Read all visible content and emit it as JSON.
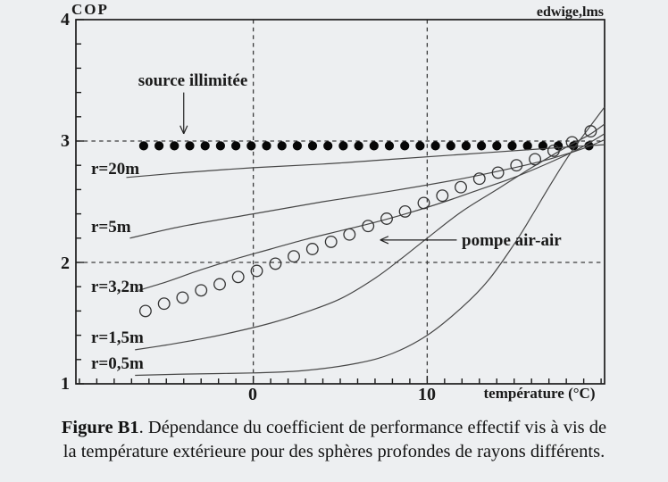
{
  "figure": {
    "watermark": "edwige,lms",
    "caption": {
      "bold": "Figure B1",
      "line1_rest": ". Dépendance du coefficient de performance effectif vis à vis de",
      "line2": "la température extérieure pour des sphères profondes de rayons différents."
    }
  },
  "colors": {
    "paper": "#edeff1",
    "ink": "#1c1c1c",
    "curve": "#474747",
    "dashed": "#3c3c3c",
    "dot_fill": "#070707"
  },
  "chart_data": {
    "type": "line",
    "title": "",
    "xlabel": "température (°C)",
    "ylabel": "COP",
    "xlim": [
      -10.2,
      20.2
    ],
    "ylim": [
      1,
      4
    ],
    "x_tick_labels": [
      "0",
      "10"
    ],
    "x_ticks_labeled_values": [
      0,
      10
    ],
    "x_minor_step": 1,
    "y_tick_labels": [
      "4",
      "3",
      "2",
      "1"
    ],
    "y_ticks_labeled_values": [
      1,
      2,
      3,
      4
    ],
    "y_minor_step": 0.2,
    "grid": {
      "h_dashed_cop": [
        2,
        3
      ],
      "v_dashed_temp": [
        0,
        10
      ]
    },
    "legend_position": "none",
    "series": [
      {
        "id": "source-illimitee",
        "style": "filled-dots",
        "cop": 2.96,
        "t_start": -6.3,
        "t_end": 19.3,
        "count": 30
      },
      {
        "id": "r-20m",
        "label": "r=20m",
        "style": "line",
        "points": [
          [
            -7.3,
            2.7
          ],
          [
            -4,
            2.74
          ],
          [
            0,
            2.78
          ],
          [
            4,
            2.81
          ],
          [
            8,
            2.85
          ],
          [
            12,
            2.89
          ],
          [
            16,
            2.93
          ],
          [
            18,
            2.95
          ],
          [
            20.2,
            2.97
          ]
        ]
      },
      {
        "id": "r-5m",
        "label": "r=5m",
        "style": "line",
        "points": [
          [
            -7.1,
            2.2
          ],
          [
            -4,
            2.3
          ],
          [
            0,
            2.4
          ],
          [
            4,
            2.5
          ],
          [
            8,
            2.59
          ],
          [
            12,
            2.69
          ],
          [
            15,
            2.78
          ],
          [
            17,
            2.85
          ],
          [
            19,
            2.94
          ],
          [
            20.2,
            3.01
          ]
        ]
      },
      {
        "id": "r-3-2m",
        "label": "r=3,2m",
        "style": "line",
        "points": [
          [
            -6.6,
            1.77
          ],
          [
            -5,
            1.84
          ],
          [
            -3,
            1.94
          ],
          [
            -1,
            2.03
          ],
          [
            1,
            2.11
          ],
          [
            3,
            2.19
          ],
          [
            5,
            2.26
          ],
          [
            7,
            2.33
          ],
          [
            9,
            2.41
          ],
          [
            11,
            2.5
          ],
          [
            13,
            2.6
          ],
          [
            15,
            2.7
          ],
          [
            17,
            2.82
          ],
          [
            18.5,
            2.92
          ],
          [
            19.5,
            3.0
          ],
          [
            20.2,
            3.06
          ]
        ]
      },
      {
        "id": "r-1-5m",
        "label": "r=1,5m",
        "style": "line",
        "points": [
          [
            -6.8,
            1.28
          ],
          [
            -5,
            1.32
          ],
          [
            -3,
            1.37
          ],
          [
            -1,
            1.43
          ],
          [
            1,
            1.5
          ],
          [
            3,
            1.59
          ],
          [
            5,
            1.7
          ],
          [
            7,
            1.87
          ],
          [
            8.5,
            2.03
          ],
          [
            10,
            2.2
          ],
          [
            12,
            2.42
          ],
          [
            14,
            2.6
          ],
          [
            16,
            2.78
          ],
          [
            18,
            2.95
          ],
          [
            19.3,
            3.05
          ],
          [
            20.2,
            3.14
          ]
        ]
      },
      {
        "id": "r-0-5m",
        "label": "r=0,5m",
        "style": "line",
        "points": [
          [
            -6.8,
            1.07
          ],
          [
            -4,
            1.08
          ],
          [
            0,
            1.09
          ],
          [
            3,
            1.11
          ],
          [
            6,
            1.17
          ],
          [
            8,
            1.25
          ],
          [
            10,
            1.4
          ],
          [
            12,
            1.63
          ],
          [
            13.5,
            1.85
          ],
          [
            15,
            2.15
          ],
          [
            16,
            2.38
          ],
          [
            17,
            2.62
          ],
          [
            18,
            2.85
          ],
          [
            19,
            3.05
          ],
          [
            20.2,
            3.28
          ]
        ]
      },
      {
        "id": "pompe-air-air",
        "style": "open-circles",
        "points": [
          [
            -6.2,
            1.6
          ],
          [
            -5.13,
            1.66
          ],
          [
            -4.07,
            1.71
          ],
          [
            -3.0,
            1.77
          ],
          [
            -1.93,
            1.82
          ],
          [
            -0.87,
            1.88
          ],
          [
            0.2,
            1.93
          ],
          [
            1.27,
            1.99
          ],
          [
            2.33,
            2.05
          ],
          [
            3.4,
            2.11
          ],
          [
            4.47,
            2.17
          ],
          [
            5.53,
            2.23
          ],
          [
            6.6,
            2.3
          ],
          [
            7.67,
            2.36
          ],
          [
            8.73,
            2.42
          ],
          [
            9.8,
            2.49
          ],
          [
            10.87,
            2.55
          ],
          [
            11.93,
            2.62
          ],
          [
            13.0,
            2.69
          ],
          [
            14.07,
            2.74
          ],
          [
            15.13,
            2.8
          ],
          [
            16.2,
            2.85
          ],
          [
            17.27,
            2.92
          ],
          [
            18.33,
            2.99
          ],
          [
            19.4,
            3.08
          ]
        ]
      }
    ],
    "annotations": [
      {
        "id": "source-illimitee-label",
        "text": "source illimitée",
        "arrow": {
          "from": [
            -4,
            3.4
          ],
          "to": [
            -4,
            3.06
          ],
          "head": "down-open"
        }
      },
      {
        "id": "pompe-air-air-label",
        "text": "pompe air-air",
        "arrow": {
          "from": [
            11.7,
            2.185
          ],
          "to": [
            7.3,
            2.185
          ],
          "head": "left-open"
        }
      }
    ]
  }
}
